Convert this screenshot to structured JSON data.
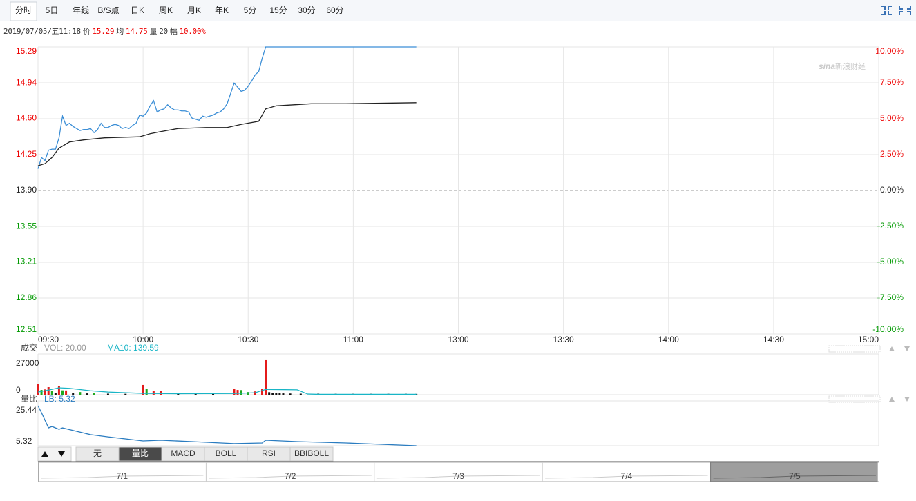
{
  "toolbar": {
    "tabs": [
      "分时",
      "5日",
      "年线",
      "B/S点",
      "日K",
      "周K",
      "月K",
      "年K",
      "5分",
      "15分",
      "30分",
      "60分"
    ]
  },
  "info": {
    "datetime": "2019/07/05/五11:18",
    "price_label": "价",
    "price": "15.29",
    "avg_label": "均",
    "avg": "14.75",
    "vol_label": "量",
    "vol": "20",
    "change_label": "幅",
    "change": "10.00%"
  },
  "watermark": {
    "logo": "sina",
    "text": "新浪财经"
  },
  "chart_data": [
    {
      "type": "line",
      "xlim": [
        0,
        240
      ],
      "xticks": [
        {
          "value": 0,
          "label": "09:30"
        },
        {
          "value": 30,
          "label": "10:00"
        },
        {
          "value": 60,
          "label": "10:30"
        },
        {
          "value": 90,
          "label": "11:00"
        },
        {
          "value": 120,
          "label": "13:00"
        },
        {
          "value": 150,
          "label": "13:30"
        },
        {
          "value": 180,
          "label": "14:00"
        },
        {
          "value": 210,
          "label": "14:30"
        },
        {
          "value": 240,
          "label": "15:00"
        }
      ],
      "ylim": [
        12.51,
        15.29
      ],
      "yticks": [
        15.29,
        14.94,
        {
          "value": 14.6,
          "label": "14.60"
        },
        14.25,
        {
          "value": 13.9,
          "label": "13.90"
        },
        13.55,
        13.21,
        12.86,
        12.51
      ],
      "y2lim": [
        -10,
        10
      ],
      "y2ticks": [
        {
          "value": 10,
          "label": "10.00%"
        },
        {
          "value": 7.5,
          "label": "7.50%"
        },
        {
          "value": 5,
          "label": "5.00%"
        },
        {
          "value": 2.5,
          "label": "2.50%"
        },
        {
          "value": 0,
          "label": "0.00%"
        },
        {
          "value": -2.5,
          "label": "-2.50%"
        },
        {
          "value": -5,
          "label": "-5.00%"
        },
        {
          "value": -7.5,
          "label": "-7.50%"
        },
        {
          "value": -10,
          "label": "-10.00%"
        }
      ],
      "grid": true,
      "series": [
        {
          "color": "#3b8ed6",
          "x": [
            0,
            1,
            2,
            3,
            4,
            5,
            6,
            7,
            8,
            9,
            10,
            11,
            12,
            13,
            14,
            15,
            16,
            17,
            18,
            19,
            20,
            21,
            22,
            23,
            24,
            25,
            26,
            27,
            28,
            29,
            30,
            31,
            32,
            33,
            34,
            35,
            36,
            37,
            38,
            39,
            40,
            41,
            42,
            43,
            44,
            45,
            46,
            47,
            48,
            49,
            50,
            51,
            52,
            53,
            54,
            55,
            56,
            57,
            58,
            59,
            60,
            61,
            62,
            63,
            64,
            65,
            70,
            80,
            90,
            100,
            108
          ],
          "values": [
            14.11,
            14.22,
            14.19,
            14.29,
            14.3,
            14.3,
            14.41,
            14.62,
            14.53,
            14.55,
            14.52,
            14.5,
            14.48,
            14.49,
            14.49,
            14.5,
            14.46,
            14.49,
            14.55,
            14.51,
            14.51,
            14.53,
            14.54,
            14.53,
            14.5,
            14.51,
            14.5,
            14.53,
            14.55,
            14.63,
            14.62,
            14.65,
            14.72,
            14.77,
            14.66,
            14.68,
            14.69,
            14.73,
            14.7,
            14.68,
            14.68,
            14.67,
            14.67,
            14.66,
            14.6,
            14.59,
            14.58,
            14.62,
            14.61,
            14.62,
            14.63,
            14.65,
            14.66,
            14.69,
            14.74,
            14.84,
            14.94,
            14.9,
            14.86,
            14.87,
            14.91,
            14.96,
            15.02,
            15.05,
            15.18,
            15.29,
            15.29,
            15.29,
            15.29,
            15.29,
            15.29
          ]
        },
        {
          "color": "#222222",
          "x": [
            0,
            2,
            4,
            6,
            9,
            13,
            19,
            29,
            32,
            35,
            40,
            48,
            54,
            58,
            63,
            65,
            68,
            78,
            88,
            108
          ],
          "values": [
            14.14,
            14.16,
            14.22,
            14.31,
            14.37,
            14.39,
            14.41,
            14.42,
            14.45,
            14.47,
            14.5,
            14.51,
            14.51,
            14.54,
            14.57,
            14.69,
            14.72,
            14.74,
            14.74,
            14.75
          ]
        }
      ]
    },
    {
      "type": "bar",
      "label": "成交",
      "vol_text": "VOL: 20.00",
      "ma_text": "MA10: 139.59",
      "xlim": [
        0,
        240
      ],
      "ylim": [
        0,
        27000
      ],
      "yticks": [
        27000,
        0
      ],
      "series": [
        {
          "color": "#e41b1b",
          "x": [
            0,
            2,
            3,
            6,
            8,
            30,
            33,
            35,
            56,
            57,
            62,
            64,
            65
          ],
          "values": [
            8300,
            4000,
            5700,
            6700,
            3200,
            7300,
            3000,
            2800,
            4200,
            3600,
            2500,
            4500,
            26500
          ]
        },
        {
          "color": "#1ea81e",
          "x": [
            1,
            4,
            7,
            12,
            16,
            31,
            58,
            60
          ],
          "values": [
            3600,
            3000,
            3300,
            2000,
            1500,
            4500,
            3500,
            2000
          ]
        },
        {
          "color": "#111111",
          "x": [
            5,
            10,
            14,
            20,
            25,
            40,
            45,
            50,
            66,
            67,
            68,
            69,
            70,
            72,
            75,
            80,
            85,
            90,
            95,
            100,
            105,
            108
          ],
          "values": [
            1500,
            1200,
            1000,
            800,
            700,
            600,
            500,
            600,
            1900,
            1500,
            1300,
            1100,
            1000,
            900,
            800,
            800,
            700,
            700,
            700,
            700,
            700,
            600
          ]
        },
        {
          "type": "line",
          "color": "#19b5c6",
          "x": [
            0,
            3,
            6,
            9,
            15,
            20,
            30,
            40,
            56,
            62,
            65,
            74,
            77,
            80,
            108
          ],
          "values": [
            2000,
            3500,
            5200,
            4800,
            3000,
            2000,
            1000,
            800,
            900,
            1500,
            4000,
            3700,
            500,
            300,
            300
          ]
        }
      ]
    },
    {
      "type": "line",
      "label": "量比",
      "lb_text": "LB: 5.32",
      "xlim": [
        0,
        240
      ],
      "ylim": [
        5.32,
        25.44
      ],
      "yticks": [
        25.44,
        5.32
      ],
      "series": [
        {
          "color": "#2a7cc0",
          "x": [
            0,
            1,
            3,
            4,
            6,
            7,
            11,
            15,
            20,
            30,
            35,
            44,
            56,
            64,
            65,
            74,
            88,
            108
          ],
          "values": [
            25.44,
            21.97,
            14.34,
            15.0,
            13.6,
            14.3,
            12.6,
            10.9,
            9.8,
            7.75,
            8.1,
            7.4,
            6.4,
            6.7,
            8.1,
            7.4,
            6.7,
            5.32
          ]
        }
      ]
    }
  ],
  "indicator_tabs": [
    "无",
    "量比",
    "MACD",
    "BOLL",
    "RSI",
    "BBIBOLL"
  ],
  "navigator": [
    "7/1",
    "7/2",
    "7/3",
    "7/4",
    "7/5"
  ]
}
